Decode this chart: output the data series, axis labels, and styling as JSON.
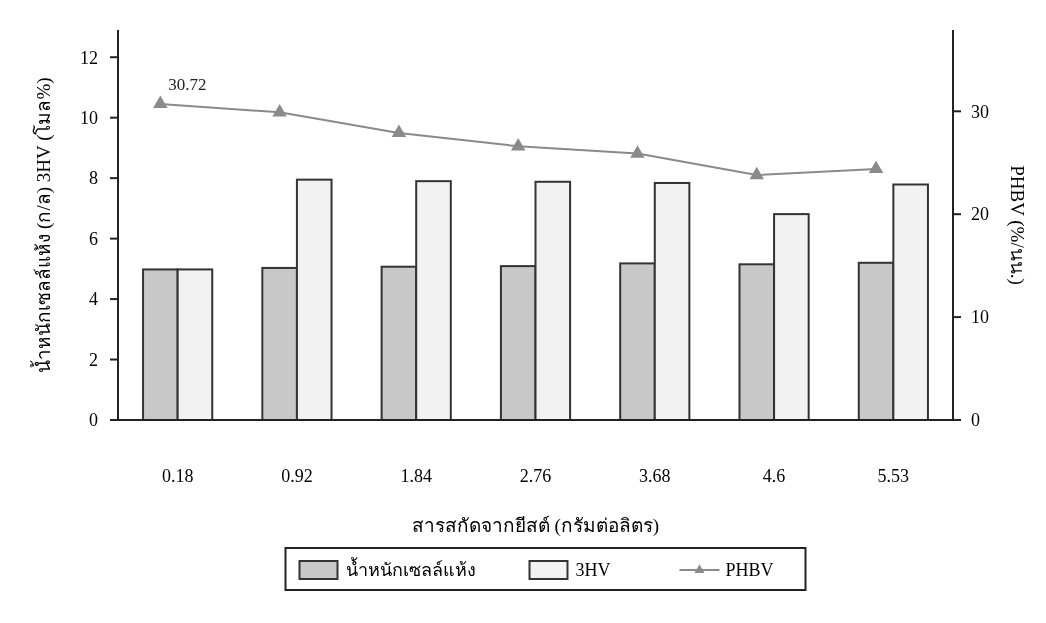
{
  "chart_data": {
    "type": "bar",
    "xlabel": "สารสกัดจากยีสต์ (กรัมต่อลิตร)",
    "ylabel": "น้ำหนักเซลล์แห้ง (ก/ล)  3HV (โมล%)",
    "y2label": "PHBV (%/นน.)",
    "categories": [
      "0.18",
      "0.92",
      "1.84",
      "2.76",
      "3.68",
      "4.6",
      "5.53"
    ],
    "series": [
      {
        "name": "น้ำหนักเซลล์แห้ง",
        "color": "#c8c8c8",
        "values": [
          4.98,
          5.03,
          5.07,
          5.09,
          5.18,
          5.15,
          5.2
        ]
      },
      {
        "name": "3HV",
        "color": "#f2f2f2",
        "values": [
          4.98,
          7.95,
          7.9,
          7.88,
          7.84,
          6.81,
          7.79
        ]
      },
      {
        "name": "PHBV",
        "type": "line",
        "axis": "y2",
        "color": "#8a8a8a",
        "marker": "triangle",
        "values": [
          30.72,
          29.9,
          27.9,
          26.6,
          25.9,
          23.8,
          24.4
        ],
        "value_labels": [
          "30.72",
          null,
          null,
          null,
          null,
          null,
          null
        ]
      }
    ],
    "ylim": [
      0,
      12.9
    ],
    "yticks": [
      0,
      2,
      4,
      6,
      8,
      10,
      12
    ],
    "y2lim": [
      0,
      37.9
    ],
    "y2ticks": [
      0,
      10,
      20,
      30
    ],
    "grid": false,
    "legend": "bottom"
  }
}
